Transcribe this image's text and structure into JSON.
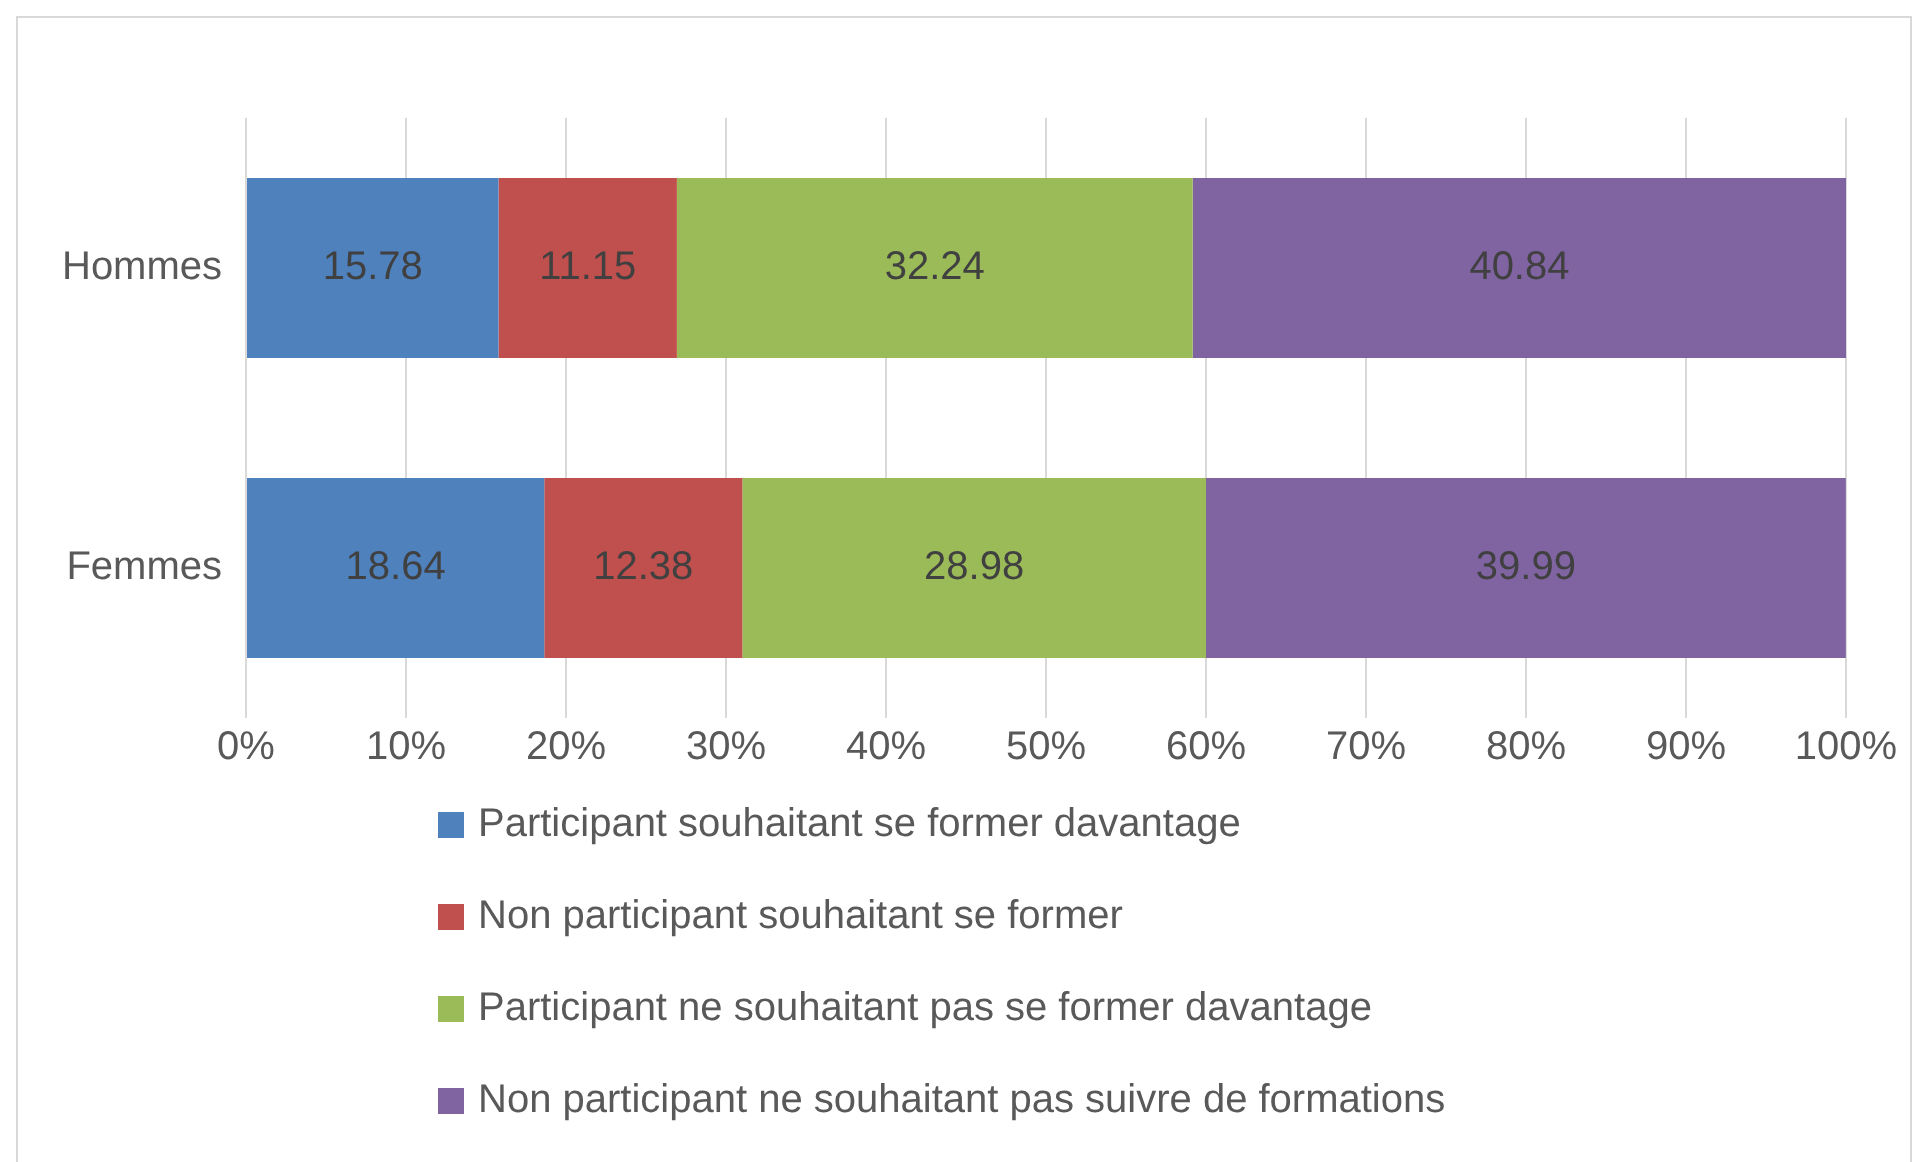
{
  "chart_data": {
    "type": "bar",
    "orientation": "horizontal",
    "stacked": true,
    "categories": [
      "Hommes",
      "Femmes"
    ],
    "series": [
      {
        "name": "Participant souhaitant se former davantage",
        "color": "#4f81bd",
        "values": [
          15.78,
          18.64
        ]
      },
      {
        "name": "Non participant souhaitant se former",
        "color": "#c0504d",
        "values": [
          11.15,
          12.38
        ]
      },
      {
        "name": "Participant ne souhaitant pas se former davantage",
        "color": "#9bbb59",
        "values": [
          32.24,
          28.98
        ]
      },
      {
        "name": "Non participant ne souhaitant pas suivre de formations",
        "color": "#8064a2",
        "values": [
          40.84,
          39.99
        ]
      }
    ],
    "xlim": [
      0,
      100
    ],
    "xticks": [
      {
        "value": 0,
        "label": "0%"
      },
      {
        "value": 10,
        "label": "10%"
      },
      {
        "value": 20,
        "label": "20%"
      },
      {
        "value": 30,
        "label": "30%"
      },
      {
        "value": 40,
        "label": "40%"
      },
      {
        "value": 50,
        "label": "50%"
      },
      {
        "value": 60,
        "label": "60%"
      },
      {
        "value": 70,
        "label": "70%"
      },
      {
        "value": 80,
        "label": "80%"
      },
      {
        "value": 90,
        "label": "90%"
      },
      {
        "value": 100,
        "label": "100%"
      }
    ],
    "grid": "x",
    "legend": "bottom",
    "data_labels": true
  }
}
